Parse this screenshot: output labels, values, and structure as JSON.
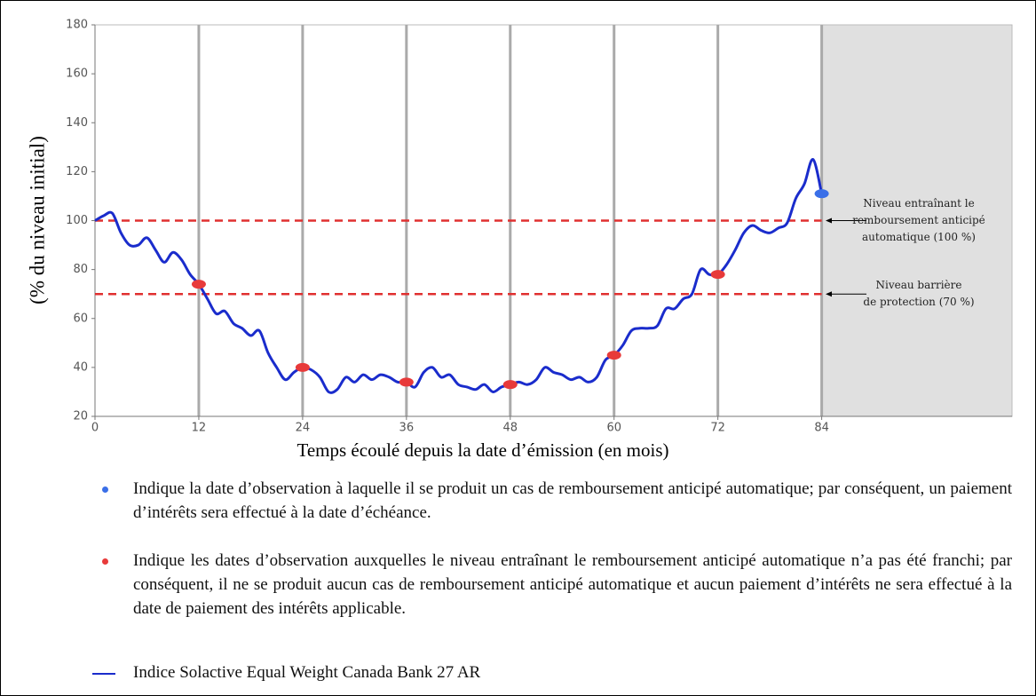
{
  "chart_data": {
    "type": "line",
    "x_label": "Temps écoulé depuis la date d’émission (en mois)",
    "y_label": "(% du niveau initial)",
    "xlim": [
      0,
      106
    ],
    "ylim": [
      20,
      180
    ],
    "xticks": [
      0,
      12,
      24,
      36,
      48,
      60,
      72,
      84
    ],
    "yticks": [
      20,
      40,
      60,
      80,
      100,
      120,
      140,
      160,
      180
    ],
    "grid": "x",
    "shade_from": 84,
    "shade_color": "#e0e0e0",
    "reference_lines": [
      {
        "value": 100,
        "color": "#e03030",
        "label": [
          "Niveau entraînant le",
          "remboursement anticipé",
          "automatique (100 %)"
        ]
      },
      {
        "value": 70,
        "color": "#e03030",
        "label": [
          "Niveau barrière",
          "de protection (70 %)"
        ]
      }
    ],
    "series": [
      {
        "name": "Indique la date d’observation à laquelle il se produit un cas de remboursement anticipé automatique; par conséquent, un paiement d’intérêts sera effectué à la date d’échéance.",
        "kind": "marker",
        "color": "#3a6fe8",
        "x": [
          84
        ],
        "values": [
          111
        ]
      },
      {
        "name": "Indique les dates d’observation auxquelles le niveau entraînant le remboursement anticipé automatique n’a pas été franchi; par conséquent, il ne se produit aucun cas de remboursement anticipé automatique et aucun paiement d’intérêts ne sera effectué à la date de paiement des intérêts applicable.",
        "kind": "marker",
        "color": "#e83a3a",
        "x": [
          12,
          24,
          36,
          48,
          60,
          72
        ],
        "values": [
          74,
          40,
          34,
          33,
          45,
          78
        ]
      },
      {
        "name": "Indice Solactive Equal Weight Canada Bank 27 AR",
        "kind": "line",
        "color": "#1a2ccc",
        "x": [
          0,
          1,
          2,
          3,
          4,
          5,
          6,
          7,
          8,
          9,
          10,
          11,
          12,
          13,
          14,
          15,
          16,
          17,
          18,
          19,
          20,
          21,
          22,
          23,
          24,
          25,
          26,
          27,
          28,
          29,
          30,
          31,
          32,
          33,
          34,
          35,
          36,
          37,
          38,
          39,
          40,
          41,
          42,
          43,
          44,
          45,
          46,
          47,
          48,
          49,
          50,
          51,
          52,
          53,
          54,
          55,
          56,
          57,
          58,
          59,
          60,
          61,
          62,
          63,
          64,
          65,
          66,
          67,
          68,
          69,
          70,
          71,
          72,
          73,
          74,
          75,
          76,
          77,
          78,
          79,
          80,
          81,
          82,
          83,
          84
        ],
        "values": [
          100,
          102,
          103,
          95,
          90,
          90,
          93,
          88,
          83,
          87,
          84,
          78,
          74,
          68,
          62,
          63,
          58,
          56,
          53,
          55,
          46,
          40,
          35,
          38,
          40,
          39,
          36,
          30,
          31,
          36,
          34,
          37,
          35,
          37,
          36,
          34,
          34,
          32,
          38,
          40,
          36,
          37,
          33,
          32,
          31,
          33,
          30,
          32,
          33,
          34,
          33,
          35,
          40,
          38,
          37,
          35,
          36,
          34,
          36,
          43,
          45,
          49,
          55,
          56,
          56,
          57,
          64,
          64,
          68,
          70,
          80,
          78,
          78,
          82,
          88,
          95,
          98,
          96,
          95,
          97,
          99,
          109,
          115,
          125,
          111
        ]
      }
    ]
  }
}
